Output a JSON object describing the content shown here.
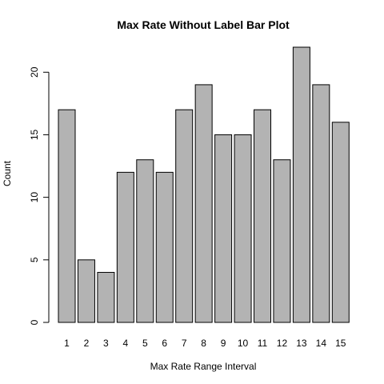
{
  "chart_data": {
    "type": "bar",
    "title": "Max Rate Without Label Bar Plot",
    "xlabel": "Max Rate Range Interval",
    "ylabel": "Count",
    "categories": [
      "1",
      "2",
      "3",
      "4",
      "5",
      "6",
      "7",
      "8",
      "9",
      "10",
      "11",
      "12",
      "13",
      "14",
      "15"
    ],
    "values": [
      17,
      5,
      4,
      12,
      13,
      12,
      17,
      19,
      15,
      15,
      17,
      13,
      22,
      19,
      16
    ],
    "ylim": [
      0,
      22
    ],
    "yticks": [
      0,
      5,
      10,
      15,
      20
    ],
    "grid": false,
    "bar_color": "#b3b3b3",
    "edge_color": "#000000"
  }
}
